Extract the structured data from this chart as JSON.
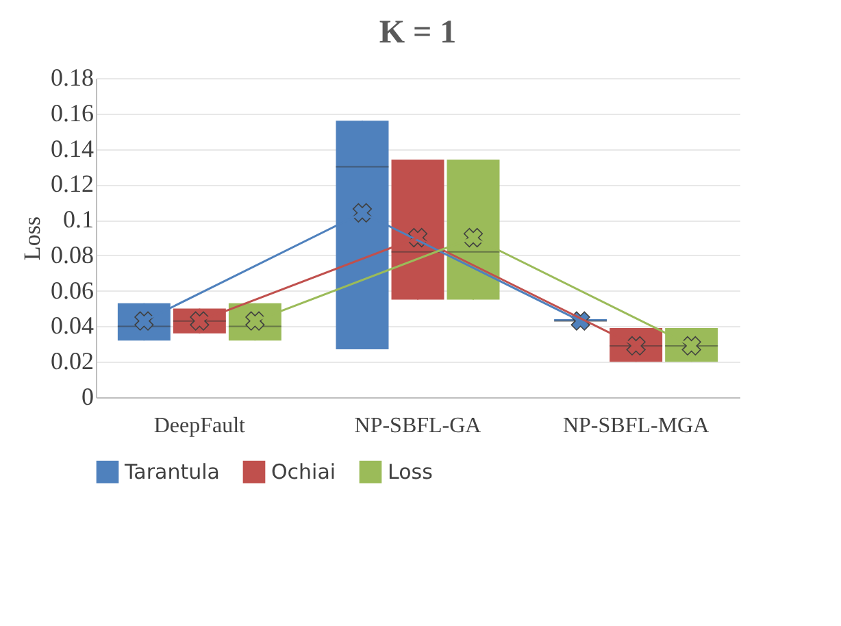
{
  "chart_data": {
    "type": "box",
    "title": "K = 1",
    "ylabel": "Loss",
    "categories": [
      "DeepFault",
      "NP-SBFL-GA",
      "NP-SBFL-MGA"
    ],
    "ylim": [
      0,
      0.18
    ],
    "yticks": [
      0,
      0.02,
      0.04,
      0.06,
      0.08,
      0.1,
      0.12,
      0.14,
      0.16,
      0.18
    ],
    "grid": "y",
    "legend": "bottom",
    "series": [
      {
        "name": "Tarantula",
        "color": "#4f81bd",
        "boxes": [
          {
            "low": 0.032,
            "q1": 0.032,
            "median": 0.04,
            "q3": 0.053,
            "high": 0.053,
            "mean": 0.043
          },
          {
            "low": 0.027,
            "q1": 0.027,
            "median": 0.13,
            "q3": 0.156,
            "high": 0.156,
            "mean": 0.104
          },
          {
            "low": 0.043,
            "q1": 0.043,
            "median": 0.043,
            "q3": 0.044,
            "high": 0.044,
            "mean": 0.043
          }
        ]
      },
      {
        "name": "Ochiai",
        "color": "#c0504d",
        "boxes": [
          {
            "low": 0.036,
            "q1": 0.036,
            "median": 0.043,
            "q3": 0.05,
            "high": 0.05,
            "mean": 0.043
          },
          {
            "low": 0.055,
            "q1": 0.055,
            "median": 0.082,
            "q3": 0.134,
            "high": 0.134,
            "mean": 0.09
          },
          {
            "low": 0.02,
            "q1": 0.02,
            "median": 0.029,
            "q3": 0.039,
            "high": 0.039,
            "mean": 0.029
          }
        ]
      },
      {
        "name": "Loss",
        "color": "#9bbb59",
        "boxes": [
          {
            "low": 0.032,
            "q1": 0.032,
            "median": 0.04,
            "q3": 0.053,
            "high": 0.053,
            "mean": 0.043
          },
          {
            "low": 0.055,
            "q1": 0.055,
            "median": 0.082,
            "q3": 0.134,
            "high": 0.134,
            "mean": 0.09
          },
          {
            "low": 0.02,
            "q1": 0.02,
            "median": 0.029,
            "q3": 0.039,
            "high": 0.039,
            "mean": 0.029
          }
        ]
      },
      {
        "type": "line",
        "color": "#4f81bd",
        "values": [
          0.043,
          0.104,
          0.043
        ]
      },
      {
        "type": "line",
        "color": "#c0504d",
        "values": [
          0.043,
          0.09,
          0.029
        ]
      },
      {
        "type": "line",
        "color": "#9bbb59",
        "values": [
          0.043,
          0.09,
          0.029
        ]
      }
    ]
  }
}
